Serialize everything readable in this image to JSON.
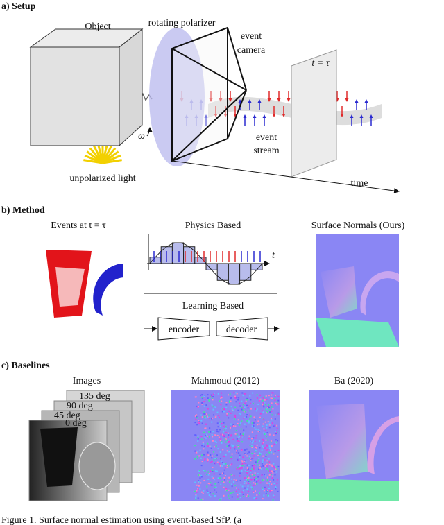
{
  "setup": {
    "label": "a) Setup",
    "object": "Object",
    "polarizer": "rotating polarizer",
    "camera": [
      "event",
      "camera"
    ],
    "stream": [
      "event",
      "stream"
    ],
    "time_marker": "t = τ",
    "omega": "ω",
    "light": "unpolarized light",
    "time_axis": "time"
  },
  "method": {
    "label": "b) Method",
    "events": "Events at t = τ",
    "physics": "Physics Based",
    "t_axis": "t",
    "learning": "Learning Based",
    "encoder": "encoder",
    "decoder": "decoder",
    "normals": "Surface Normals (Ours)"
  },
  "baselines": {
    "label": "c) Baselines",
    "images": "Images",
    "angles": [
      "135 deg",
      "90 deg",
      "45 deg",
      "0 deg"
    ],
    "mahmoud": "Mahmoud (2012)",
    "ba": "Ba (2020)"
  },
  "caption": "Figure 1.  Surface normal estimation using event-based SfP. (a"
}
